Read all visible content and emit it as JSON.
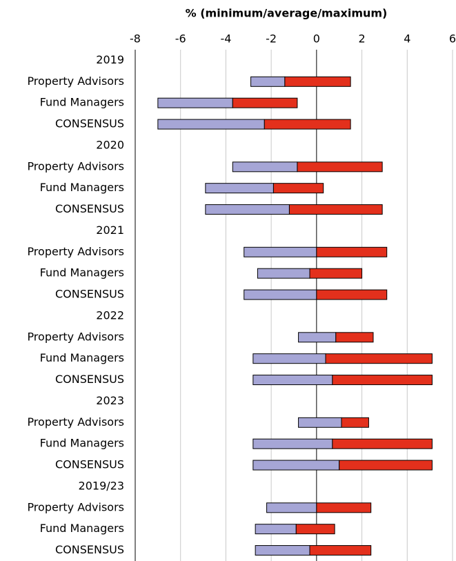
{
  "chart_data": {
    "type": "range_bar",
    "title": "% (minimum/average/maximum)",
    "categories": [
      "2019",
      "Property Advisors",
      "Fund Managers",
      "CONSENSUS",
      "2020",
      "Property Advisors",
      "Fund Managers",
      "CONSENSUS",
      "2021",
      "Property Advisors",
      "Fund Managers",
      "CONSENSUS",
      "2022",
      "Property Advisors",
      "Fund Managers",
      "CONSENSUS",
      "2023",
      "Property Advisors",
      "Fund Managers",
      "CONSENSUS",
      "2019/23",
      "Property Advisors",
      "Fund Managers",
      "CONSENSUS"
    ],
    "minimum": [
      null,
      -2.9,
      -7.0,
      -7.0,
      null,
      -3.7,
      -4.9,
      -4.9,
      null,
      -3.2,
      -2.6,
      -3.2,
      null,
      -0.8,
      -2.8,
      -2.8,
      null,
      -0.8,
      -2.8,
      -2.8,
      null,
      -2.2,
      -2.7,
      -2.7
    ],
    "average": [
      null,
      -1.4,
      -3.7,
      -2.3,
      null,
      -0.85,
      -1.9,
      -1.2,
      null,
      0.0,
      -0.3,
      0.0,
      null,
      0.85,
      0.4,
      0.7,
      null,
      1.1,
      0.7,
      1.0,
      null,
      0.0,
      -0.9,
      -0.3
    ],
    "maximum": [
      null,
      1.5,
      -0.85,
      1.5,
      null,
      2.9,
      0.3,
      2.9,
      null,
      3.1,
      2.0,
      3.1,
      null,
      2.5,
      5.1,
      5.1,
      null,
      2.3,
      5.1,
      5.1,
      null,
      2.4,
      0.8,
      2.4
    ],
    "low_color": "#a6a6d6",
    "high_color": "#e3301c",
    "xlim": [
      -8,
      6
    ],
    "xticks": [
      -8,
      -6,
      -4,
      -2,
      0,
      2,
      4,
      6
    ],
    "grid": true
  }
}
